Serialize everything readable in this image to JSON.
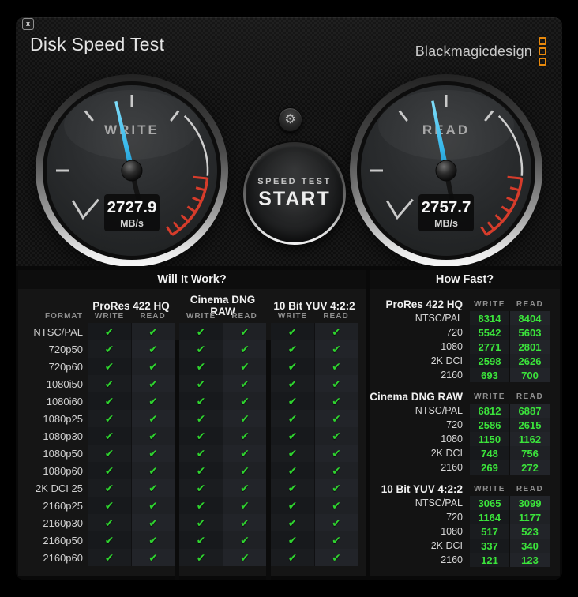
{
  "window": {
    "title": "Disk Speed Test",
    "close_label": "x"
  },
  "brand": {
    "name": "Blackmagicdesign"
  },
  "controls": {
    "settings_glyph": "⚙",
    "start_line1": "SPEED TEST",
    "start_line2": "START"
  },
  "gauges": [
    {
      "id": "write",
      "label": "WRITE",
      "value": "2727.9",
      "unit": "MB/s",
      "needle_deg": -13
    },
    {
      "id": "read",
      "label": "READ",
      "value": "2757.7",
      "unit": "MB/s",
      "needle_deg": -11
    }
  ],
  "will_it_work": {
    "title": "Will It Work?",
    "format_header": "FORMAT",
    "groups": [
      "ProRes 422 HQ",
      "Cinema DNG RAW",
      "10 Bit YUV 4:2:2"
    ],
    "sub_headers": [
      "WRITE",
      "READ"
    ],
    "check_glyph": "✔",
    "rows": [
      {
        "format": "NTSC/PAL",
        "checks": [
          true,
          true,
          true,
          true,
          true,
          true
        ]
      },
      {
        "format": "720p50",
        "checks": [
          true,
          true,
          true,
          true,
          true,
          true
        ]
      },
      {
        "format": "720p60",
        "checks": [
          true,
          true,
          true,
          true,
          true,
          true
        ]
      },
      {
        "format": "1080i50",
        "checks": [
          true,
          true,
          true,
          true,
          true,
          true
        ]
      },
      {
        "format": "1080i60",
        "checks": [
          true,
          true,
          true,
          true,
          true,
          true
        ]
      },
      {
        "format": "1080p25",
        "checks": [
          true,
          true,
          true,
          true,
          true,
          true
        ]
      },
      {
        "format": "1080p30",
        "checks": [
          true,
          true,
          true,
          true,
          true,
          true
        ]
      },
      {
        "format": "1080p50",
        "checks": [
          true,
          true,
          true,
          true,
          true,
          true
        ]
      },
      {
        "format": "1080p60",
        "checks": [
          true,
          true,
          true,
          true,
          true,
          true
        ]
      },
      {
        "format": "2K DCI 25",
        "checks": [
          true,
          true,
          true,
          true,
          true,
          true
        ]
      },
      {
        "format": "2160p25",
        "checks": [
          true,
          true,
          true,
          true,
          true,
          true
        ]
      },
      {
        "format": "2160p30",
        "checks": [
          true,
          true,
          true,
          true,
          true,
          true
        ]
      },
      {
        "format": "2160p50",
        "checks": [
          true,
          true,
          true,
          true,
          true,
          true
        ]
      },
      {
        "format": "2160p60",
        "checks": [
          true,
          true,
          true,
          true,
          true,
          true
        ]
      }
    ]
  },
  "how_fast": {
    "title": "How Fast?",
    "col_headers": [
      "WRITE",
      "READ"
    ],
    "sections": [
      {
        "name": "ProRes 422 HQ",
        "rows": [
          {
            "label": "NTSC/PAL",
            "write": "8314",
            "read": "8404"
          },
          {
            "label": "720",
            "write": "5542",
            "read": "5603"
          },
          {
            "label": "1080",
            "write": "2771",
            "read": "2801"
          },
          {
            "label": "2K DCI",
            "write": "2598",
            "read": "2626"
          },
          {
            "label": "2160",
            "write": "693",
            "read": "700"
          }
        ]
      },
      {
        "name": "Cinema DNG RAW",
        "rows": [
          {
            "label": "NTSC/PAL",
            "write": "6812",
            "read": "6887"
          },
          {
            "label": "720",
            "write": "2586",
            "read": "2615"
          },
          {
            "label": "1080",
            "write": "1150",
            "read": "1162"
          },
          {
            "label": "2K DCI",
            "write": "748",
            "read": "756"
          },
          {
            "label": "2160",
            "write": "269",
            "read": "272"
          }
        ]
      },
      {
        "name": "10 Bit YUV 4:2:2",
        "rows": [
          {
            "label": "NTSC/PAL",
            "write": "3065",
            "read": "3099"
          },
          {
            "label": "720",
            "write": "1164",
            "read": "1177"
          },
          {
            "label": "1080",
            "write": "517",
            "read": "523"
          },
          {
            "label": "2K DCI",
            "write": "337",
            "read": "340"
          },
          {
            "label": "2160",
            "write": "121",
            "read": "123"
          }
        ]
      }
    ]
  },
  "colors": {
    "accent_orange": "#e8890c",
    "check_green": "#2fd32f",
    "value_green": "#3be43b",
    "needle_blue": "#35b6ea",
    "red_zone": "#d63c2b",
    "tick_gray": "#c9c9c9"
  }
}
